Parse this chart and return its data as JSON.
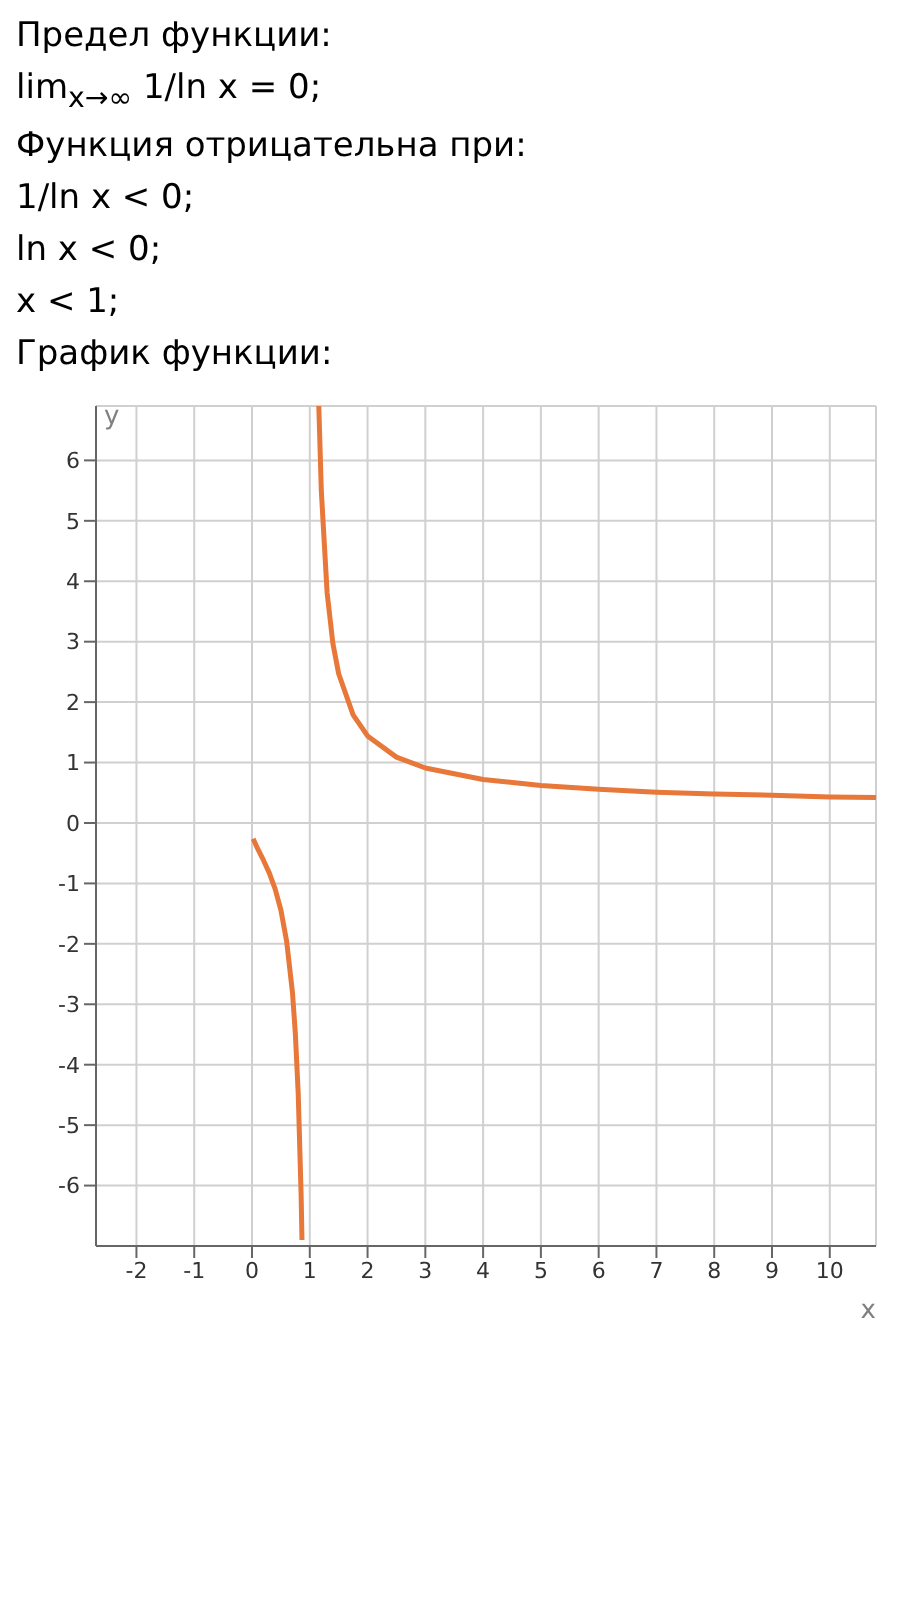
{
  "chart_data": {
    "type": "line",
    "title": "График функции:",
    "annotations": [
      "Предел функции:",
      "lim$_{x→∞}$ 1/ln x = 0;",
      "Функция отрицательна при:",
      "1/ln x < 0;",
      "ln x < 0;",
      "x < 1;"
    ],
    "xlabel": "x",
    "ylabel": "y",
    "series": [
      {
        "color": "#e8773a",
        "x": [
          0.02,
          0.1,
          0.2,
          0.3,
          0.4,
          0.5,
          0.6,
          0.7,
          0.75,
          0.8,
          0.85,
          0.865
        ],
        "values": [
          -0.26,
          -0.43,
          -0.62,
          -0.83,
          -1.09,
          -1.44,
          -1.96,
          -2.8,
          -3.48,
          -4.48,
          -6.15,
          -6.9
        ]
      },
      {
        "color": "#e8773a",
        "x": [
          1.156,
          1.2,
          1.3,
          1.4,
          1.5,
          1.75,
          2,
          2.5,
          3,
          4,
          5,
          6,
          7,
          8,
          9,
          10,
          10.8
        ],
        "values": [
          6.9,
          5.49,
          3.81,
          2.97,
          2.47,
          1.79,
          1.44,
          1.09,
          0.91,
          0.72,
          0.62,
          0.56,
          0.51,
          0.48,
          0.46,
          0.43,
          0.42
        ]
      }
    ],
    "xlim": [
      -2.7,
      10.8
    ],
    "xticks": [
      -2,
      -1,
      0,
      1,
      2,
      3,
      4,
      5,
      6,
      7,
      8,
      9,
      10
    ],
    "ylim": [
      -7,
      6.9
    ],
    "yticks": [
      -6,
      -5,
      -4,
      -3,
      -2,
      -1,
      0,
      1,
      2,
      3,
      4,
      5,
      6
    ],
    "grid": true,
    "marker": "none",
    "line_style": "solid"
  }
}
